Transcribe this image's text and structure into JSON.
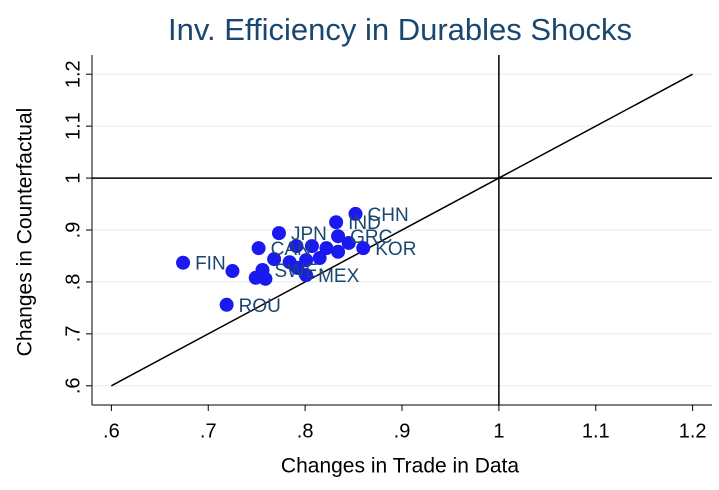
{
  "chart_data": {
    "type": "scatter",
    "title": "Inv. Efficiency in Durables Shocks",
    "x_label": "Changes in Trade in Data",
    "y_label": "Changes in Counterfactual",
    "xlim": [
      0.58,
      1.22
    ],
    "ylim": [
      0.563,
      1.237
    ],
    "xticks": [
      {
        "value": 0.6,
        "label": ".6"
      },
      {
        "value": 0.7,
        "label": ".7"
      },
      {
        "value": 0.8,
        "label": ".8"
      },
      {
        "value": 0.9,
        "label": ".9"
      },
      1,
      1.1,
      1.2
    ],
    "yticks": [
      {
        "value": 0.6,
        "label": ".6"
      },
      {
        "value": 0.7,
        "label": ".7"
      },
      {
        "value": 0.8,
        "label": ".8"
      },
      {
        "value": 0.9,
        "label": ".9"
      },
      1,
      1.1,
      1.2
    ],
    "grid": true,
    "xline": 1,
    "yline": 1,
    "reference_line": {
      "x": [
        0.6,
        1.2
      ],
      "y": [
        0.6,
        1.2
      ]
    },
    "series": [
      {
        "color": "#1a1af0",
        "x": [
          0.674,
          0.719,
          0.852,
          0.832,
          0.773,
          0.834,
          0.752,
          0.791,
          0.807,
          0.822,
          0.845,
          0.86,
          0.768,
          0.784,
          0.801,
          0.815,
          0.834,
          0.756,
          0.725,
          0.749,
          0.759,
          0.801,
          0.792
        ],
        "values": [
          0.837,
          0.756,
          0.931,
          0.915,
          0.894,
          0.888,
          0.865,
          0.869,
          0.869,
          0.865,
          0.875,
          0.865,
          0.844,
          0.838,
          0.842,
          0.846,
          0.858,
          0.823,
          0.821,
          0.808,
          0.806,
          0.813,
          0.827
        ],
        "point_labels": [
          "FIN",
          "ROU",
          "CHN",
          "IND",
          "JPN",
          "GRC",
          "CAN",
          null,
          null,
          null,
          null,
          "KOR",
          null,
          null,
          null,
          null,
          null,
          "SWE",
          null,
          null,
          null,
          "MEX",
          null
        ]
      }
    ]
  }
}
